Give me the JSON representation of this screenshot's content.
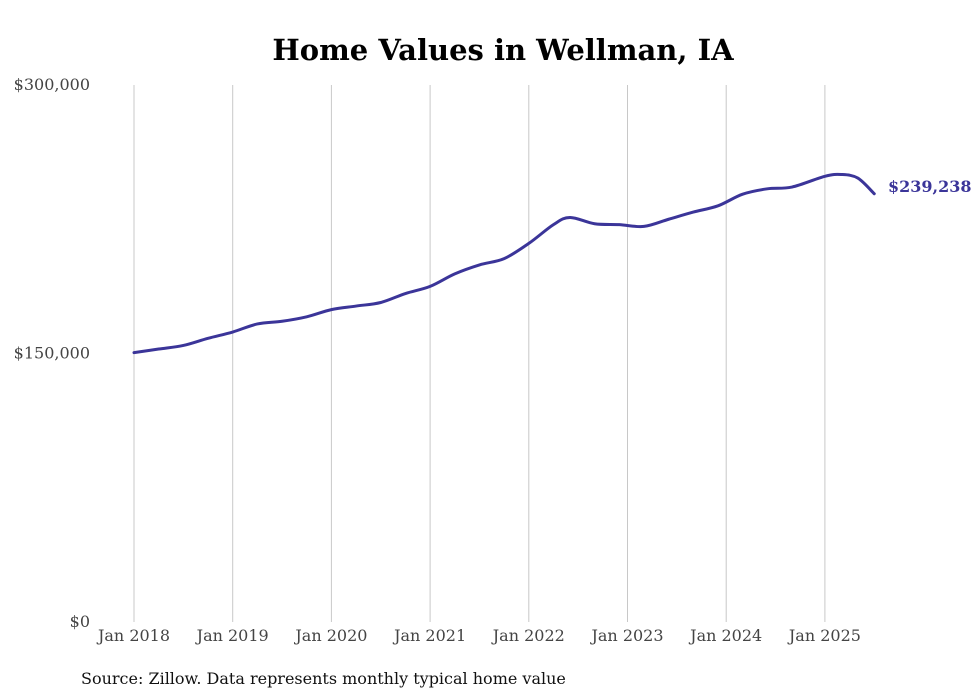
{
  "chart_data": {
    "type": "line",
    "title": "Home Values in Wellman, IA",
    "xlabel": "",
    "ylabel": "",
    "ylim": [
      0,
      300000
    ],
    "y_ticks": [
      {
        "value": 0,
        "label": "$0"
      },
      {
        "value": 150000,
        "label": "$150,000"
      },
      {
        "value": 300000,
        "label": "$300,000"
      }
    ],
    "x_ticks": [
      {
        "value": "2018-01",
        "label": "Jan 2018"
      },
      {
        "value": "2019-01",
        "label": "Jan 2019"
      },
      {
        "value": "2020-01",
        "label": "Jan 2020"
      },
      {
        "value": "2021-01",
        "label": "Jan 2021"
      },
      {
        "value": "2022-01",
        "label": "Jan 2022"
      },
      {
        "value": "2023-01",
        "label": "Jan 2023"
      },
      {
        "value": "2024-01",
        "label": "Jan 2024"
      },
      {
        "value": "2025-01",
        "label": "Jan 2025"
      }
    ],
    "xlim": [
      "2018-01",
      "2025-07"
    ],
    "grid": "vertical",
    "legend": "none",
    "line_color": "#3b3599",
    "end_label": "$239,238",
    "source_note": "Source: Zillow. Data represents monthly typical home value",
    "series": [
      {
        "x": [
          "2018-01",
          "2018-04",
          "2018-07",
          "2018-10",
          "2019-01",
          "2019-04",
          "2019-07",
          "2019-10",
          "2020-01",
          "2020-04",
          "2020-07",
          "2020-10",
          "2021-01",
          "2021-04",
          "2021-07",
          "2021-10",
          "2022-01",
          "2022-04",
          "2022-06",
          "2022-09",
          "2022-12",
          "2023-03",
          "2023-06",
          "2023-09",
          "2023-12",
          "2024-03",
          "2024-06",
          "2024-09",
          "2025-01",
          "2025-03",
          "2025-05",
          "2025-07"
        ],
        "values": [
          150500,
          152500,
          154500,
          158500,
          162000,
          166500,
          168000,
          170500,
          174500,
          176500,
          178500,
          183500,
          187500,
          194500,
          199500,
          203000,
          211500,
          222000,
          226000,
          222500,
          222000,
          221000,
          225000,
          229000,
          232500,
          239000,
          242000,
          243000,
          249000,
          250000,
          248000,
          239238
        ]
      }
    ]
  }
}
